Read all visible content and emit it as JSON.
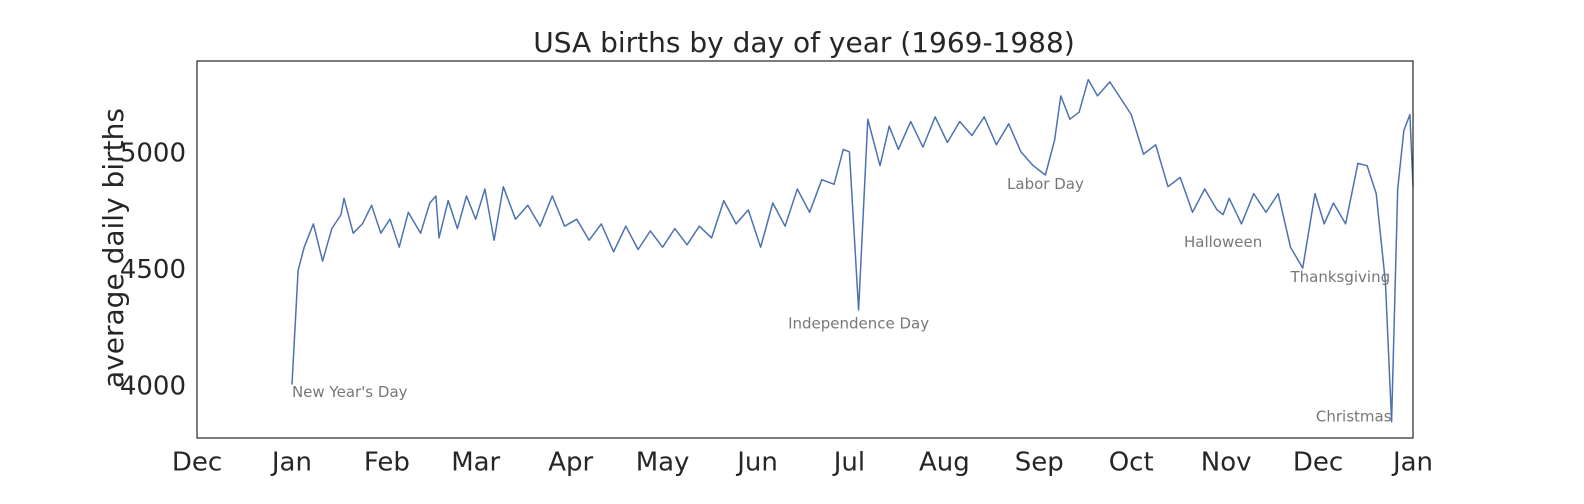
{
  "chart_data": {
    "type": "line",
    "title": "USA births by day of year (1969-1988)",
    "xlabel": "",
    "ylabel": "average daily births",
    "xlim": [
      "2011-12-01",
      "2013-01-01"
    ],
    "ylim": [
      3780,
      5400
    ],
    "grid": false,
    "color": "#4c72b0",
    "xticks": [
      {
        "date": "2011-12-01",
        "label": "Dec"
      },
      {
        "date": "2012-01-01",
        "label": "Jan"
      },
      {
        "date": "2012-02-01",
        "label": "Feb"
      },
      {
        "date": "2012-03-01",
        "label": "Mar"
      },
      {
        "date": "2012-04-01",
        "label": "Apr"
      },
      {
        "date": "2012-05-01",
        "label": "May"
      },
      {
        "date": "2012-06-01",
        "label": "Jun"
      },
      {
        "date": "2012-07-01",
        "label": "Jul"
      },
      {
        "date": "2012-08-01",
        "label": "Aug"
      },
      {
        "date": "2012-09-01",
        "label": "Sep"
      },
      {
        "date": "2012-10-01",
        "label": "Oct"
      },
      {
        "date": "2012-11-01",
        "label": "Nov"
      },
      {
        "date": "2012-12-01",
        "label": "Dec"
      },
      {
        "date": "2013-01-01",
        "label": "Jan"
      }
    ],
    "yticks": [
      4000,
      4500,
      5000
    ],
    "series": [
      {
        "name": "",
        "points": [
          [
            "2012-01-01",
            4010
          ],
          [
            "2012-01-03",
            4500
          ],
          [
            "2012-01-05",
            4600
          ],
          [
            "2012-01-08",
            4700
          ],
          [
            "2012-01-11",
            4540
          ],
          [
            "2012-01-14",
            4680
          ],
          [
            "2012-01-17",
            4740
          ],
          [
            "2012-01-18",
            4810
          ],
          [
            "2012-01-21",
            4660
          ],
          [
            "2012-01-24",
            4700
          ],
          [
            "2012-01-27",
            4780
          ],
          [
            "2012-01-30",
            4660
          ],
          [
            "2012-02-02",
            4720
          ],
          [
            "2012-02-05",
            4600
          ],
          [
            "2012-02-08",
            4750
          ],
          [
            "2012-02-12",
            4660
          ],
          [
            "2012-02-15",
            4790
          ],
          [
            "2012-02-17",
            4820
          ],
          [
            "2012-02-18",
            4640
          ],
          [
            "2012-02-21",
            4800
          ],
          [
            "2012-02-24",
            4680
          ],
          [
            "2012-02-27",
            4820
          ],
          [
            "2012-03-01",
            4720
          ],
          [
            "2012-03-04",
            4850
          ],
          [
            "2012-03-07",
            4630
          ],
          [
            "2012-03-10",
            4860
          ],
          [
            "2012-03-14",
            4720
          ],
          [
            "2012-03-18",
            4780
          ],
          [
            "2012-03-22",
            4690
          ],
          [
            "2012-03-26",
            4820
          ],
          [
            "2012-03-30",
            4690
          ],
          [
            "2012-04-03",
            4720
          ],
          [
            "2012-04-07",
            4630
          ],
          [
            "2012-04-11",
            4700
          ],
          [
            "2012-04-15",
            4580
          ],
          [
            "2012-04-19",
            4690
          ],
          [
            "2012-04-23",
            4590
          ],
          [
            "2012-04-27",
            4670
          ],
          [
            "2012-05-01",
            4600
          ],
          [
            "2012-05-05",
            4680
          ],
          [
            "2012-05-09",
            4610
          ],
          [
            "2012-05-13",
            4690
          ],
          [
            "2012-05-17",
            4640
          ],
          [
            "2012-05-21",
            4800
          ],
          [
            "2012-05-25",
            4700
          ],
          [
            "2012-05-29",
            4760
          ],
          [
            "2012-06-02",
            4600
          ],
          [
            "2012-06-06",
            4790
          ],
          [
            "2012-06-10",
            4690
          ],
          [
            "2012-06-14",
            4850
          ],
          [
            "2012-06-18",
            4750
          ],
          [
            "2012-06-22",
            4890
          ],
          [
            "2012-06-26",
            4870
          ],
          [
            "2012-06-29",
            5020
          ],
          [
            "2012-07-01",
            5010
          ],
          [
            "2012-07-04",
            4330
          ],
          [
            "2012-07-07",
            5150
          ],
          [
            "2012-07-11",
            4950
          ],
          [
            "2012-07-14",
            5120
          ],
          [
            "2012-07-17",
            5020
          ],
          [
            "2012-07-21",
            5140
          ],
          [
            "2012-07-25",
            5030
          ],
          [
            "2012-07-29",
            5160
          ],
          [
            "2012-08-02",
            5050
          ],
          [
            "2012-08-06",
            5140
          ],
          [
            "2012-08-10",
            5080
          ],
          [
            "2012-08-14",
            5160
          ],
          [
            "2012-08-18",
            5040
          ],
          [
            "2012-08-22",
            5130
          ],
          [
            "2012-08-26",
            5010
          ],
          [
            "2012-08-30",
            4950
          ],
          [
            "2012-09-03",
            4910
          ],
          [
            "2012-09-06",
            5060
          ],
          [
            "2012-09-08",
            5250
          ],
          [
            "2012-09-11",
            5150
          ],
          [
            "2012-09-14",
            5180
          ],
          [
            "2012-09-17",
            5320
          ],
          [
            "2012-09-20",
            5250
          ],
          [
            "2012-09-24",
            5310
          ],
          [
            "2012-09-27",
            5250
          ],
          [
            "2012-10-01",
            5170
          ],
          [
            "2012-10-05",
            5000
          ],
          [
            "2012-10-09",
            5040
          ],
          [
            "2012-10-13",
            4860
          ],
          [
            "2012-10-17",
            4900
          ],
          [
            "2012-10-21",
            4750
          ],
          [
            "2012-10-25",
            4850
          ],
          [
            "2012-10-29",
            4760
          ],
          [
            "2012-10-31",
            4740
          ],
          [
            "2012-11-02",
            4810
          ],
          [
            "2012-11-06",
            4700
          ],
          [
            "2012-11-10",
            4830
          ],
          [
            "2012-11-14",
            4750
          ],
          [
            "2012-11-18",
            4830
          ],
          [
            "2012-11-22",
            4600
          ],
          [
            "2012-11-26",
            4510
          ],
          [
            "2012-11-30",
            4830
          ],
          [
            "2012-12-03",
            4700
          ],
          [
            "2012-12-06",
            4790
          ],
          [
            "2012-12-10",
            4700
          ],
          [
            "2012-12-14",
            4960
          ],
          [
            "2012-12-17",
            4950
          ],
          [
            "2012-12-20",
            4830
          ],
          [
            "2012-12-23",
            4450
          ],
          [
            "2012-12-25",
            3850
          ],
          [
            "2012-12-27",
            4850
          ],
          [
            "2012-12-29",
            5100
          ],
          [
            "2012-12-31",
            5170
          ],
          [
            "2013-01-01",
            4860
          ]
        ]
      }
    ],
    "annotations": [
      {
        "text": "New Year's Day",
        "date": "2012-01-01",
        "value": 3975,
        "anchor": "start"
      },
      {
        "text": "Independence Day",
        "date": "2012-07-04",
        "value": 4270,
        "anchor": "middle"
      },
      {
        "text": "Labor Day",
        "date": "2012-09-03",
        "value": 4870,
        "anchor": "middle"
      },
      {
        "text": "Halloween",
        "date": "2012-10-31",
        "value": 4620,
        "anchor": "middle"
      },
      {
        "text": "Thanksgiving",
        "date": "2012-11-22",
        "value": 4470,
        "anchor": "start"
      },
      {
        "text": "Christmas",
        "date": "2012-12-25",
        "value": 3870,
        "anchor": "end"
      }
    ]
  }
}
